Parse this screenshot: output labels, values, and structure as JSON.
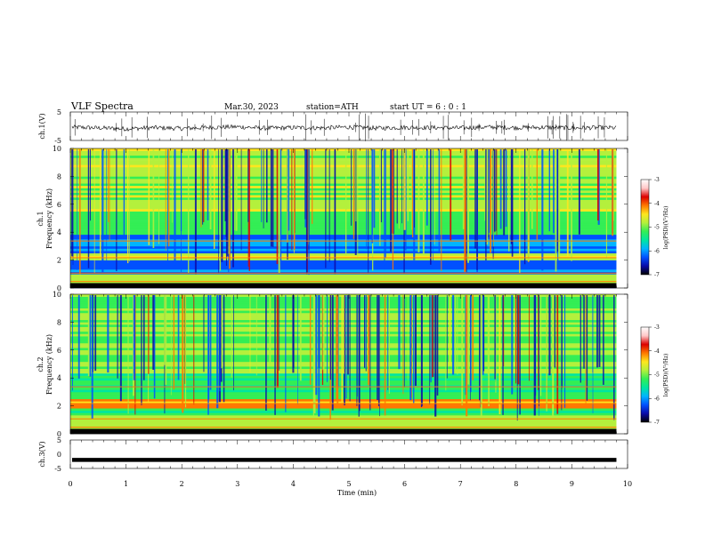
{
  "header": {
    "title": "VLF  Spectra",
    "date": "Mar.30, 2023",
    "station": "station=ATH",
    "start": "start  UT  =    6  : 0   : 1"
  },
  "colorbar": {
    "label": "log(PSD)(V²/Hz)",
    "ticks": [
      "-3",
      "-4",
      "-5",
      "-6",
      "-7"
    ],
    "colors": [
      "#000000",
      "#0a0aa8",
      "#0050ff",
      "#00b4ff",
      "#00e6a0",
      "#33ee55",
      "#b4f03c",
      "#ffe61e",
      "#ff7800",
      "#dc0000",
      "#ffc8c8",
      "#ffffff"
    ]
  },
  "chart_data": [
    {
      "type": "line",
      "name": "ch1-waveform",
      "ylabel": "ch.1(V)",
      "ylim": [
        -5,
        5
      ],
      "yticks": [
        "5",
        "-5"
      ],
      "xlim": [
        0,
        10
      ],
      "x": [
        0,
        0.5,
        1,
        1.5,
        2,
        2.5,
        3,
        3.5,
        4,
        4.5,
        5,
        5.5,
        6,
        6.5,
        7,
        7.5,
        8,
        8.5,
        9,
        9.5,
        9.8
      ],
      "y": [
        -0.3,
        -0.6,
        -0.9,
        -0.5,
        -0.8,
        -0.4,
        -0.2,
        -0.7,
        -0.5,
        -0.6,
        -0.3,
        -0.7,
        -0.4,
        -0.5,
        -0.6,
        -0.3,
        -0.5,
        -0.4,
        -0.6,
        -0.5,
        -0.6
      ]
    },
    {
      "type": "heatmap",
      "name": "ch1-spectrogram",
      "ylabel_top": "ch.1",
      "ylabel": "Frequency (kHz)",
      "ylim": [
        0,
        10
      ],
      "yticks": [
        "0",
        "2",
        "4",
        "6",
        "8",
        "10"
      ],
      "xlim": [
        0,
        10
      ],
      "data_xmax": 9.8,
      "value_range": [
        -7,
        -3
      ]
    },
    {
      "type": "heatmap",
      "name": "ch2-spectrogram",
      "ylabel_top": "ch.2",
      "ylabel": "Frequency (kHz)",
      "ylim": [
        0,
        10
      ],
      "yticks": [
        "0",
        "2",
        "4",
        "6",
        "8",
        "10"
      ],
      "xlim": [
        0,
        10
      ],
      "data_xmax": 9.8,
      "value_range": [
        -7,
        -3
      ]
    },
    {
      "type": "line",
      "name": "ch3-waveform",
      "ylabel": "ch.3(V)",
      "ylim": [
        -5,
        5
      ],
      "yticks": [
        "5",
        "0",
        "-5"
      ],
      "xlim": [
        0,
        10
      ],
      "x": [
        0,
        9.8
      ],
      "y": [
        -2,
        -2
      ]
    }
  ],
  "xaxis": {
    "label": "Time  (min)",
    "ticks": [
      "0",
      "1",
      "2",
      "3",
      "4",
      "5",
      "6",
      "7",
      "8",
      "9",
      "10"
    ]
  }
}
